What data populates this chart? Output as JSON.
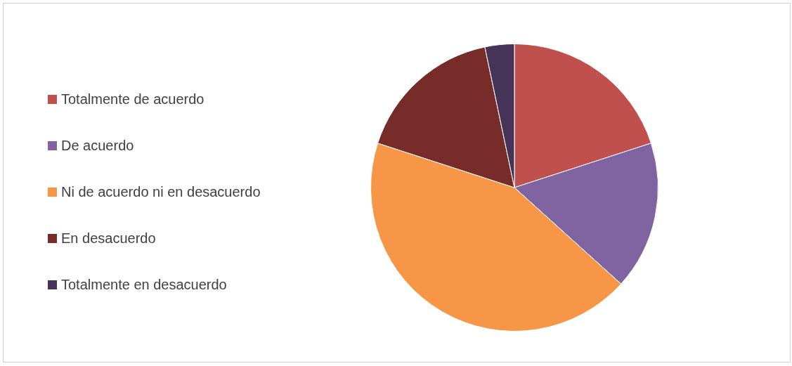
{
  "chart_data": {
    "type": "pie",
    "categories": [
      "Totalmente de acuerdo",
      "De acuerdo",
      "Ni de acuerdo ni en desacuerdo",
      "En desacuerdo",
      "Totalmente en desacuerdo"
    ],
    "values": [
      20,
      16.7,
      43.3,
      16.7,
      3.3
    ],
    "colors": [
      "#c0504d",
      "#8064a2",
      "#f79646",
      "#772c2a",
      "#463458"
    ],
    "legend": "left"
  }
}
